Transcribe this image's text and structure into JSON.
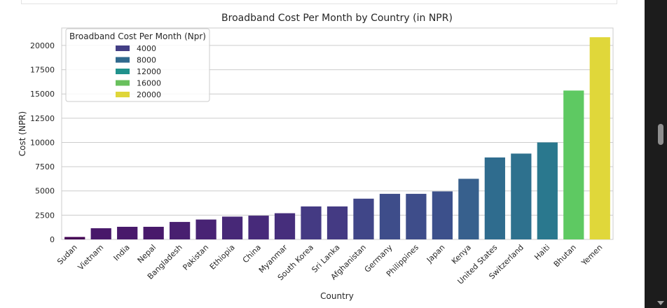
{
  "chart_data": {
    "type": "bar",
    "title": "Broadband Cost Per Month by Country (in NPR)",
    "xlabel": "Country",
    "ylabel": "Cost (NPR)",
    "ylim": [
      0,
      21800
    ],
    "yticks": [
      0,
      2500,
      5000,
      7500,
      10000,
      12500,
      15000,
      17500,
      20000
    ],
    "grid": true,
    "legend": {
      "title": "Broadband Cost Per Month (Npr)",
      "placement": "top-left",
      "entries": [
        {
          "label": "4000",
          "color": "#433e85"
        },
        {
          "label": "8000",
          "color": "#306a8e"
        },
        {
          "label": "12000",
          "color": "#20928c"
        },
        {
          "label": "16000",
          "color": "#69c05d"
        },
        {
          "label": "20000",
          "color": "#dfd63a"
        }
      ]
    },
    "categories": [
      "Sudan",
      "Vietnam",
      "India",
      "Nepal",
      "Bangladesh",
      "Pakistan",
      "Ethiopia",
      "China",
      "Myanmar",
      "South Korea",
      "Sri Lanka",
      "Afghanistan",
      "Germany",
      "Philippines",
      "Japan",
      "Kenya",
      "United States",
      "Switzerland",
      "Haiti",
      "Bhutan",
      "Yemen"
    ],
    "values": [
      250,
      1150,
      1300,
      1300,
      1800,
      2050,
      2350,
      2450,
      2700,
      3400,
      3400,
      4200,
      4700,
      4700,
      4950,
      6250,
      8450,
      8850,
      10000,
      15350,
      20850
    ],
    "colors": [
      "#440154",
      "#48186a",
      "#48196b",
      "#48196b",
      "#481f70",
      "#482374",
      "#472877",
      "#472a7a",
      "#462e7c",
      "#443a83",
      "#443a83",
      "#404688",
      "#3e4d8a",
      "#3e4d8a",
      "#3c508b",
      "#37608d",
      "#2f6c8e",
      "#2e718e",
      "#2a788e",
      "#5ec962",
      "#e0d73a"
    ]
  }
}
